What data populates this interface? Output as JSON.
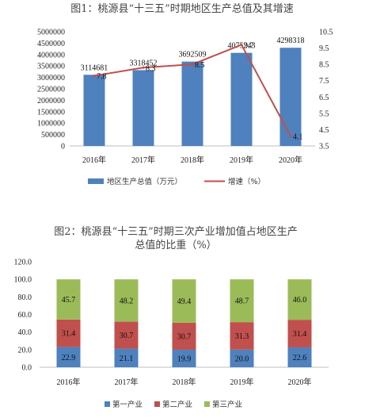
{
  "chart_data": [
    {
      "type": "bar+line",
      "title": "图1：桃源县“十三五”时期地区生产总值及其增速",
      "categories": [
        "2016年",
        "2017年",
        "2018年",
        "2019年",
        "2020年"
      ],
      "series": [
        {
          "name": "地区生产总值（万元）",
          "kind": "bar",
          "axis": "left",
          "values": [
            3114681,
            3318452,
            3692509,
            4075243,
            4298318
          ],
          "color": "#4e81bd"
        },
        {
          "name": "增速（%）",
          "kind": "line",
          "axis": "right",
          "values": [
            7.8,
            8.3,
            8.5,
            9.7,
            4.1
          ],
          "color": "#c0504d"
        }
      ],
      "ylim": [
        0,
        5000000
      ],
      "yticks": [
        0,
        500000,
        1000000,
        1500000,
        2000000,
        2500000,
        3000000,
        3500000,
        4000000,
        4500000,
        5000000
      ],
      "ytick_labels": [
        "0",
        "500000",
        "1000000",
        "1500000",
        "2000000",
        "2500000",
        "3000000",
        "3500000",
        "4000000",
        "4500000",
        "5000000"
      ],
      "y2lim": [
        3.5,
        10.5
      ],
      "y2ticks": [
        3.5,
        4.5,
        5.5,
        6.5,
        7.5,
        8.5,
        9.5,
        10.5
      ],
      "y2tick_labels": [
        "3.5",
        "4.5",
        "5.5",
        "6.5",
        "7.5",
        "8.5",
        "9.5",
        "10.5"
      ],
      "bar_labels": [
        "3114681",
        "3318452",
        "3692509",
        "4075243",
        "4298318"
      ],
      "line_labels": [
        "7.8",
        "8.3",
        "8.5",
        "9.7",
        "4.1"
      ],
      "grid": false,
      "legend": "bottom"
    },
    {
      "type": "stacked-bar",
      "title_lines": [
        "图2：桃源县“十三五”时期三次产业增加值占地区生产",
        "总值的比重（%）"
      ],
      "categories": [
        "2016年",
        "2017年",
        "2018年",
        "2019年",
        "2020年"
      ],
      "series": [
        {
          "name": "第一产业",
          "values": [
            22.9,
            21.1,
            19.9,
            20.0,
            22.6
          ],
          "labels": [
            "22.9",
            "21.1",
            "19.9",
            "20.0",
            "22.6"
          ],
          "color": "#4e81bd"
        },
        {
          "name": "第二产业",
          "values": [
            31.4,
            30.7,
            30.7,
            31.3,
            31.4
          ],
          "labels": [
            "31.4",
            "30.7",
            "30.7",
            "31.3",
            "31.4"
          ],
          "color": "#c0504d"
        },
        {
          "name": "第三产业",
          "values": [
            45.7,
            48.2,
            49.4,
            48.7,
            46.0
          ],
          "labels": [
            "45.7",
            "48.2",
            "49.4",
            "48.7",
            "46.0"
          ],
          "color": "#9bbb59"
        }
      ],
      "ylim": [
        0,
        120
      ],
      "yticks": [
        0,
        20,
        40,
        60,
        80,
        100,
        120
      ],
      "ytick_labels": [
        "0.0",
        "20.0",
        "40.0",
        "60.0",
        "80.0",
        "100.0",
        "120.0"
      ],
      "grid": false,
      "legend": "bottom"
    }
  ]
}
